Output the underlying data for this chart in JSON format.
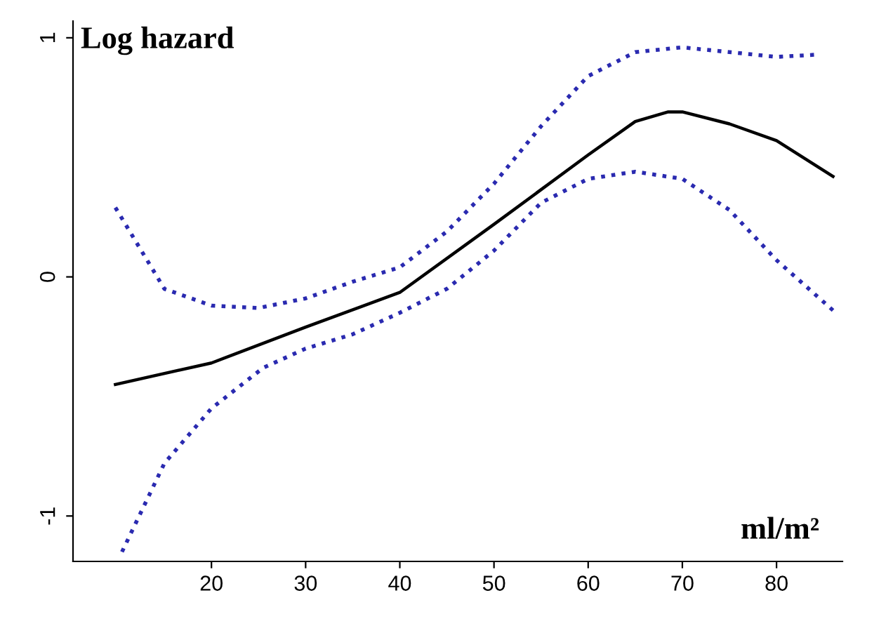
{
  "chart_data": {
    "type": "line",
    "xlabel": "ml/m²",
    "ylabel": "Log hazard",
    "xlim": [
      5.3,
      87
    ],
    "ylim": [
      -1.19,
      1.07
    ],
    "xticks": [
      20,
      30,
      40,
      50,
      60,
      70,
      80
    ],
    "yticks": [
      -1,
      0,
      1
    ],
    "grid": false,
    "marker": "none",
    "series": [
      {
        "color": "#000000",
        "line_style": "solid",
        "x": [
          9.8,
          20,
          30,
          40,
          50,
          60,
          65,
          68.5,
          70,
          75,
          80,
          86
        ],
        "values": [
          -0.45,
          -0.36,
          -0.21,
          -0.065,
          0.22,
          0.51,
          0.65,
          0.69,
          0.69,
          0.64,
          0.57,
          0.42
        ]
      },
      {
        "color": "#2a2ab0",
        "line_style": "dotted",
        "x": [
          9.8,
          15,
          20,
          25,
          30,
          35,
          40,
          45,
          50,
          55,
          60,
          65,
          70,
          75,
          80,
          84.5
        ],
        "values": [
          0.29,
          -0.05,
          -0.12,
          -0.13,
          -0.09,
          -0.02,
          0.04,
          0.19,
          0.39,
          0.63,
          0.84,
          0.94,
          0.96,
          0.94,
          0.92,
          0.93
        ]
      },
      {
        "color": "#2a2ab0",
        "line_style": "dotted",
        "x": [
          10.5,
          15,
          20,
          25.5,
          30,
          35,
          40,
          45,
          50,
          55,
          60,
          65,
          70,
          75,
          80,
          86
        ],
        "values": [
          -1.15,
          -0.78,
          -0.55,
          -0.38,
          -0.3,
          -0.24,
          -0.15,
          -0.05,
          0.11,
          0.31,
          0.41,
          0.44,
          0.41,
          0.28,
          0.07,
          -0.14
        ]
      }
    ]
  }
}
